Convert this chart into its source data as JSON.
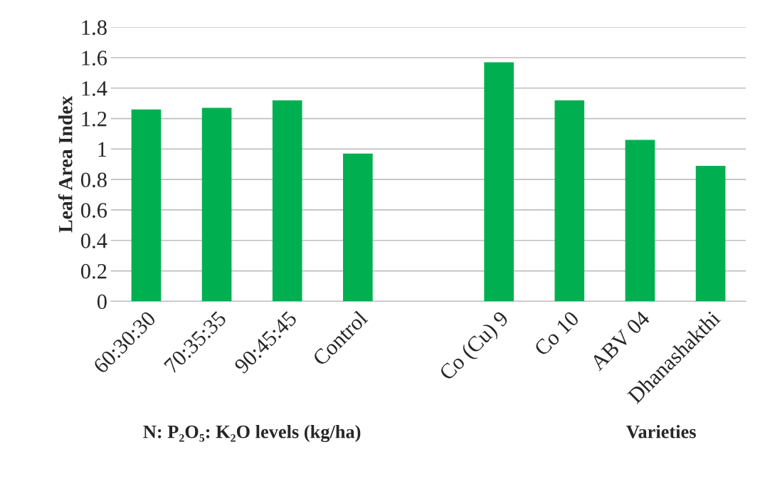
{
  "chart_data": {
    "type": "bar",
    "categories": [
      "60:30:30",
      "70:35:35",
      "90:45:45",
      "Control",
      null,
      "Co (Cu) 9",
      "Co 10",
      "ABV 04",
      "Dhanashakthi"
    ],
    "values": [
      1.26,
      1.27,
      1.32,
      0.97,
      null,
      1.57,
      1.32,
      1.06,
      0.89
    ],
    "color": "#00b050",
    "ylabel": "Leaf Area Index",
    "ylim": [
      0,
      1.8
    ],
    "yticks": [
      0,
      0.2,
      0.4,
      0.6,
      0.8,
      1,
      1.2,
      1.4,
      1.6,
      1.8
    ],
    "grid": "y",
    "annotations": [
      "N: P₂O₅: K₂O levels (kg/ha)",
      "Varieties"
    ]
  }
}
